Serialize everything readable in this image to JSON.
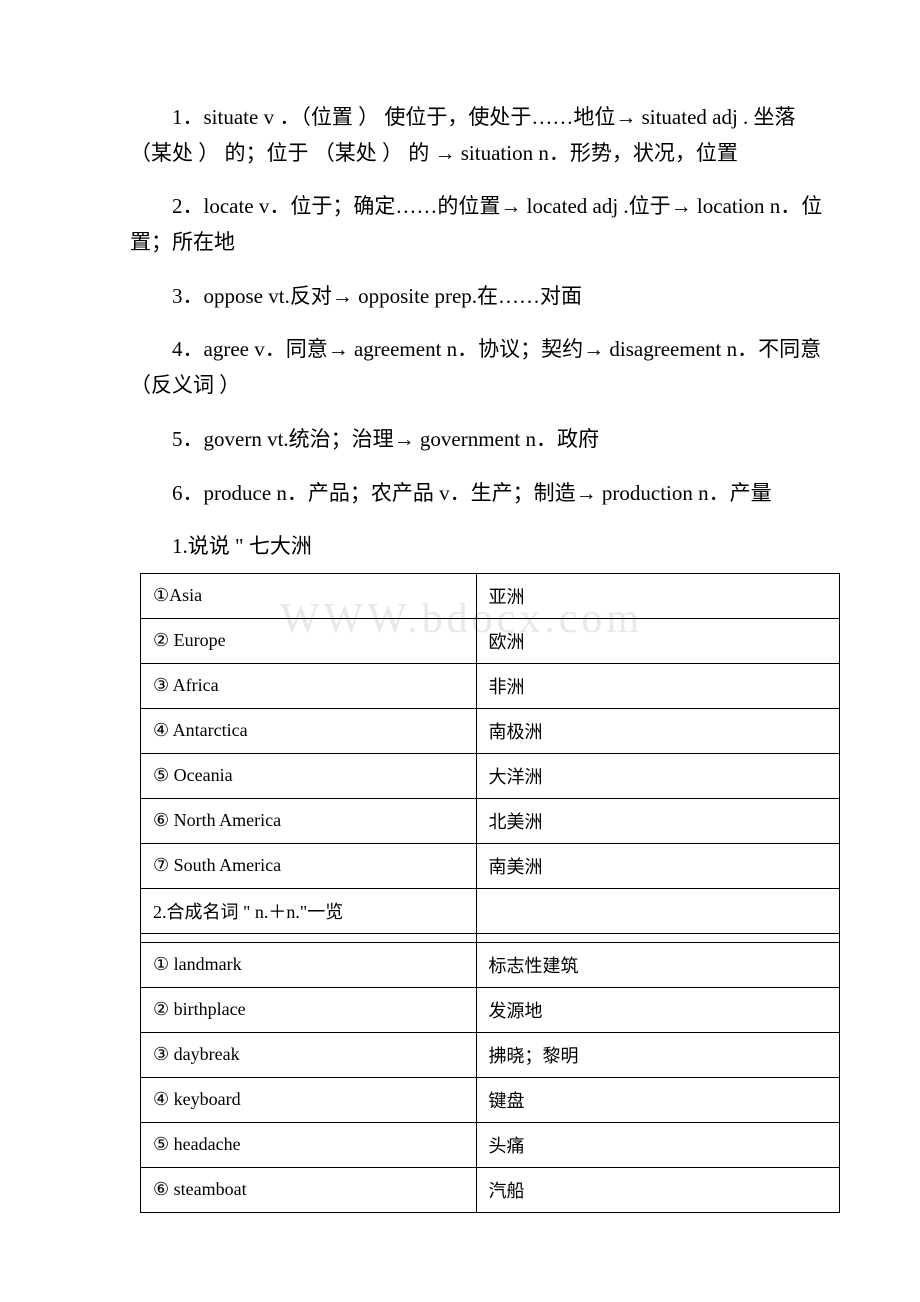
{
  "paragraphs": [
    "1．situate v ．（位置 ） 使位于，使处于……地位→ situated adj . 坐落 （某处 ） 的；位于 （某处 ） 的 → situation n．形势，状况，位置",
    "2．locate v．位于；确定……的位置→ located adj .位于→ location n．位置；所在地",
    "3．oppose vt.反对→ opposite prep.在……对面",
    "4．agree v．同意→ agreement n．协议；契约→ disagreement n．不同意 （反义词 ）",
    "5．govern vt.统治；治理→ government n．政府",
    "6．produce n．产品；农产品 v．生产；制造→ production n．产量"
  ],
  "section1": {
    "heading": "1.说说 \" 七大洲",
    "rows": [
      {
        "left": "①Asia",
        "right": "亚洲"
      },
      {
        "left": "② Europe",
        "right": "欧洲"
      },
      {
        "left": "③ Africa",
        "right": "非洲"
      },
      {
        "left": "④ Antarctica",
        "right": "南极洲"
      },
      {
        "left": "⑤ Oceania",
        "right": "大洋洲"
      },
      {
        "left": "⑥ North America",
        "right": "北美洲"
      },
      {
        "left": "⑦ South America",
        "right": "南美洲"
      }
    ]
  },
  "section2": {
    "heading": "2.合成名词 \" n.＋n.\"一览",
    "rows": [
      {
        "left": "① landmark",
        "right": "标志性建筑"
      },
      {
        "left": "② birthplace",
        "right": "发源地"
      },
      {
        "left": "③ daybreak",
        "right": "拂晓；黎明"
      },
      {
        "left": "④ keyboard",
        "right": "键盘"
      },
      {
        "left": "⑤ headache",
        "right": "头痛"
      },
      {
        "left": "⑥ steamboat",
        "right": "汽船"
      }
    ]
  },
  "watermark": "WWW.bdocx.com"
}
